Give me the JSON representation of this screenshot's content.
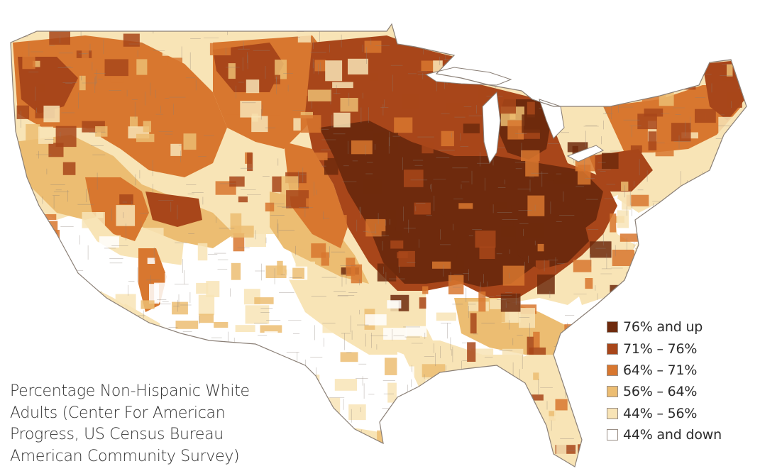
{
  "caption": {
    "lines": [
      "Percentage Non-Hispanic White",
      "Adults (Center For American",
      "Progress, US Census Bureau",
      "American Community Survey)"
    ]
  },
  "legend": {
    "items": [
      {
        "label": "76% and up",
        "color": "#6e2a0d"
      },
      {
        "label": "71% – 76%",
        "color": "#a8461a"
      },
      {
        "label": "64% – 71%",
        "color": "#d8772f"
      },
      {
        "label": "56% – 64%",
        "color": "#ecbd72"
      },
      {
        "label": "44% – 56%",
        "color": "#f8e4b6"
      },
      {
        "label": "44% and down",
        "color": "#ffffff"
      }
    ]
  },
  "map": {
    "border_color": "#8a7f76",
    "region_colors": {
      "c76": "#6e2a0d",
      "c71": "#a8461a",
      "c64": "#d8772f",
      "c56": "#ecbd72",
      "c44": "#f8e4b6",
      "c0": "#ffffff"
    }
  }
}
